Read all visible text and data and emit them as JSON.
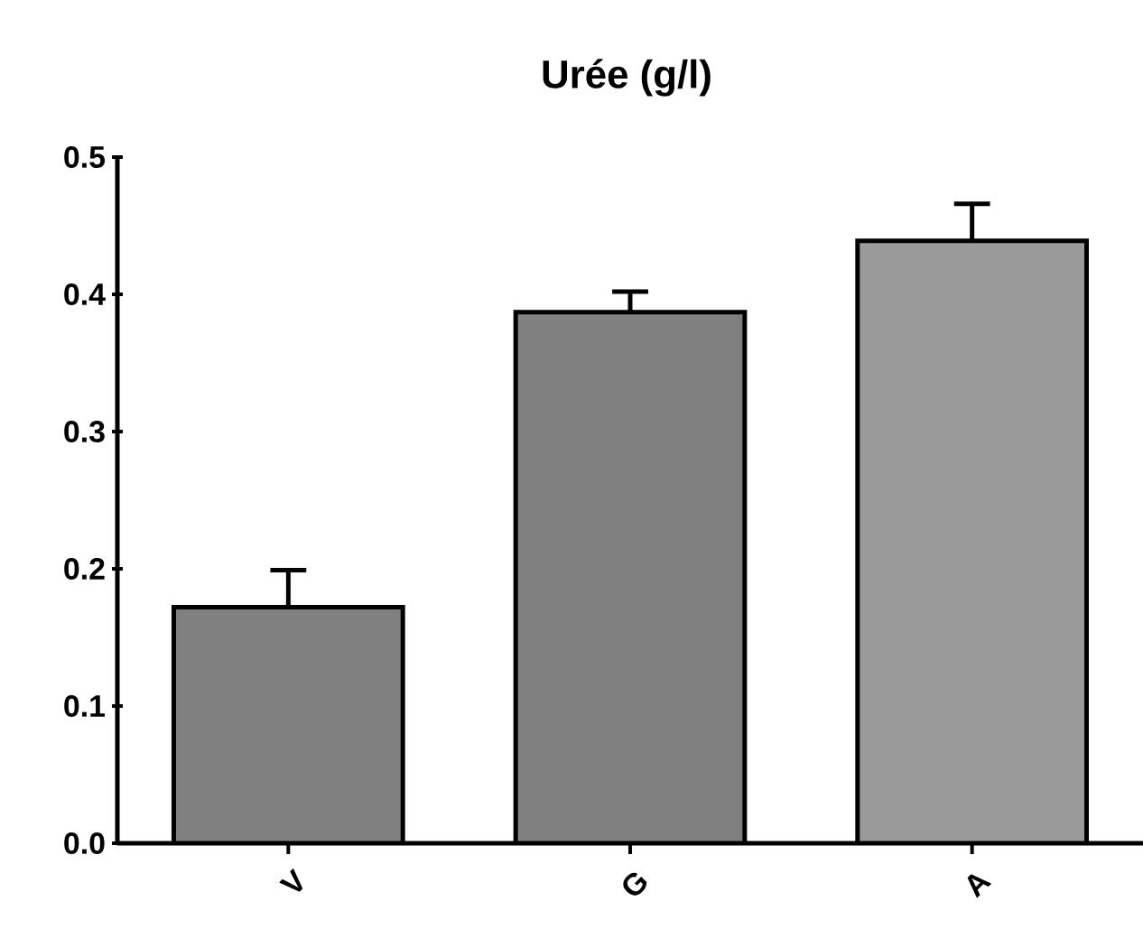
{
  "chart_data": {
    "type": "bar",
    "title": "Urée (g/l)",
    "categories": [
      "V",
      "G",
      "A"
    ],
    "values": [
      0.172,
      0.387,
      0.439
    ],
    "errors": [
      0.027,
      0.015,
      0.027
    ],
    "colors": [
      "#808080",
      "#808080",
      "#9a9a9a"
    ],
    "ylim": [
      0,
      0.5
    ],
    "yticks": [
      {
        "value": 0,
        "label": "0.0"
      },
      {
        "value": 0.1,
        "label": "0.1"
      },
      {
        "value": 0.2,
        "label": "0.2"
      },
      {
        "value": 0.3,
        "label": "0.3"
      },
      {
        "value": 0.4,
        "label": "0.4"
      },
      {
        "value": 0.5,
        "label": "0.5"
      }
    ],
    "grid": false
  }
}
